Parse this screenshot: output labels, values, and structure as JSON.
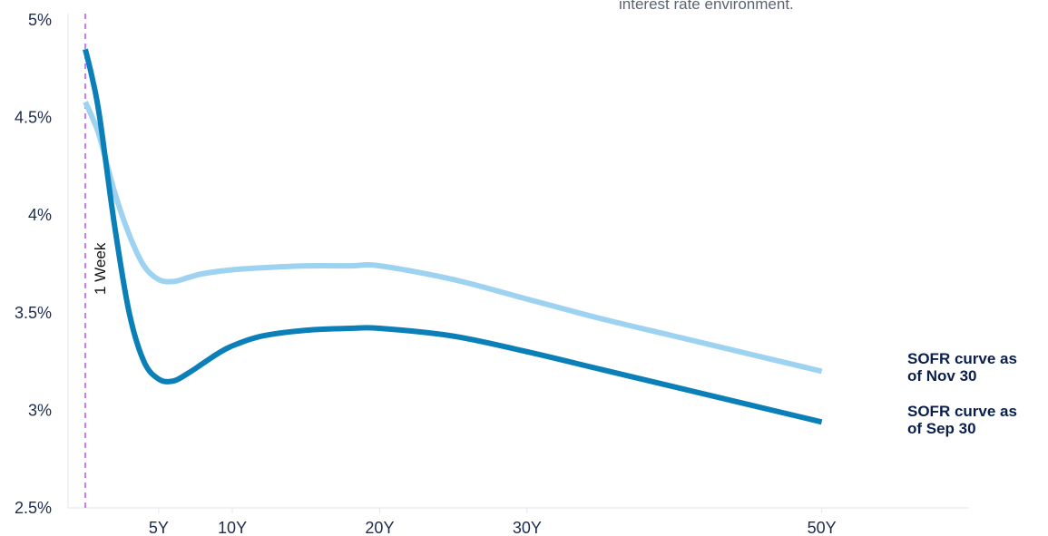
{
  "chart_data": {
    "type": "line",
    "title": "",
    "xlabel": "",
    "ylabel": "",
    "ylim": [
      2.5,
      5
    ],
    "xlim": [
      0.02,
      60
    ],
    "y_ticks": [
      "2.5%",
      "3%",
      "3.5%",
      "4%",
      "4.5%",
      "5%"
    ],
    "y_tick_values": [
      2.5,
      3,
      3.5,
      4,
      4.5,
      5
    ],
    "x_ticks": [
      "5Y",
      "10Y",
      "20Y",
      "30Y",
      "50Y"
    ],
    "x_tick_values": [
      5,
      10,
      20,
      30,
      50
    ],
    "grid": false,
    "annotation": "interest rate environment.",
    "reference_line": {
      "label": "1 Week",
      "x": 0.02,
      "color": "#c77dff"
    },
    "series": [
      {
        "name": "SOFR curve as of Nov 30",
        "color": "#9dd3f1",
        "x": [
          0.02,
          0.5,
          1,
          2,
          3,
          4,
          5,
          6,
          7,
          8,
          10,
          12,
          15,
          18,
          20,
          25,
          30,
          35,
          40,
          45,
          50
        ],
        "values": [
          4.58,
          4.5,
          4.4,
          4.12,
          3.9,
          3.74,
          3.67,
          3.66,
          3.68,
          3.7,
          3.72,
          3.73,
          3.74,
          3.74,
          3.74,
          3.67,
          3.57,
          3.47,
          3.38,
          3.29,
          3.2
        ]
      },
      {
        "name": "SOFR curve as of Sep 30",
        "color": "#0a7fb8",
        "x": [
          0.02,
          0.5,
          1,
          2,
          3,
          4,
          5,
          6,
          7,
          8,
          9,
          10,
          12,
          15,
          18,
          20,
          25,
          30,
          35,
          40,
          45,
          50
        ],
        "values": [
          4.85,
          4.7,
          4.5,
          3.95,
          3.5,
          3.25,
          3.16,
          3.15,
          3.19,
          3.24,
          3.29,
          3.33,
          3.38,
          3.41,
          3.42,
          3.42,
          3.38,
          3.3,
          3.21,
          3.12,
          3.03,
          2.94
        ]
      }
    ],
    "series_labels": [
      {
        "line1": "SOFR curve as",
        "line2": "of Nov 30"
      },
      {
        "line1": "SOFR curve as",
        "line2": "of Sep 30"
      }
    ]
  }
}
